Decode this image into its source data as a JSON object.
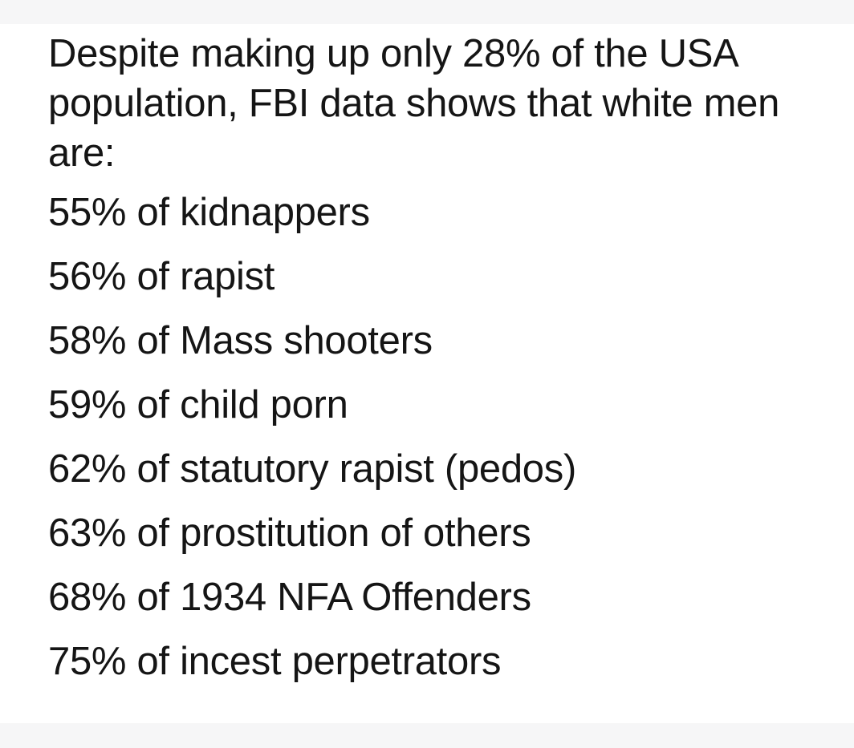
{
  "post": {
    "intro": "Despite making up only 28% of the USA population, FBI data shows that white men are:",
    "stats": [
      "55% of kidnappers",
      "56% of rapist",
      "58% of Mass shooters",
      "59% of child porn",
      "62% of statutory rapist (pedos)",
      "63% of prostitution of others",
      "68% of 1934 NFA Offenders",
      "75% of incest perpetrators"
    ]
  }
}
